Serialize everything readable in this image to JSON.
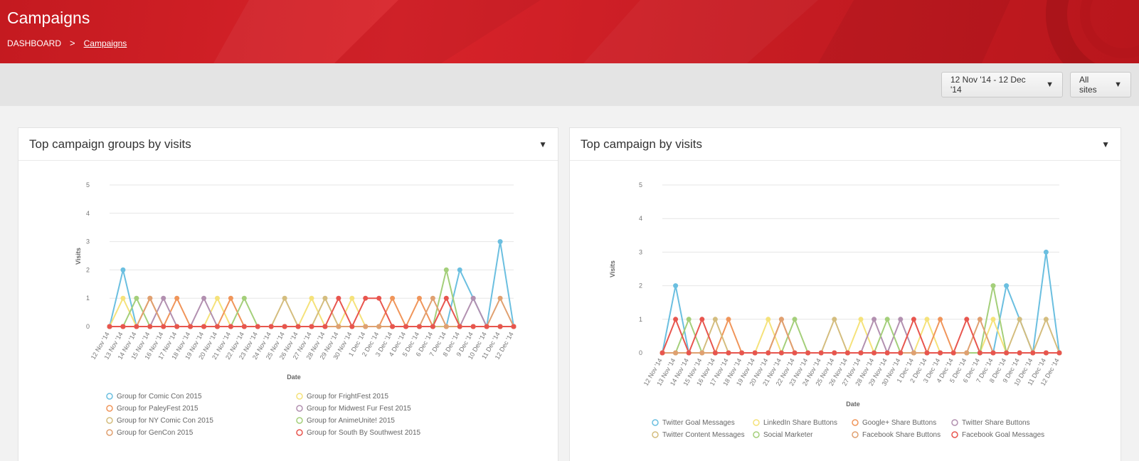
{
  "header": {
    "title": "Campaigns",
    "breadcrumb": {
      "root": "DASHBOARD",
      "separator": ">",
      "current": "Campaigns"
    }
  },
  "toolbar": {
    "date_range": "12 Nov '14 - 12 Dec '14",
    "sites": "All sites"
  },
  "colors": {
    "header_red": "#d8232a",
    "toolbar_bg": "#e4e4e4"
  },
  "panels": [
    {
      "title": "Top campaign groups by visits"
    },
    {
      "title": "Top campaign by visits"
    }
  ],
  "chart_data": [
    {
      "type": "line",
      "title": "Top campaign groups by visits",
      "xlabel": "Date",
      "ylabel": "Visits",
      "ylim": [
        0,
        5
      ],
      "yticks": [
        0,
        1,
        2,
        3,
        4,
        5
      ],
      "grid": true,
      "legend": "bottom",
      "x": [
        "12 Nov '14",
        "13 Nov '14",
        "14 Nov '14",
        "15 Nov '14",
        "16 Nov '14",
        "17 Nov '14",
        "18 Nov '14",
        "19 Nov '14",
        "20 Nov '14",
        "21 Nov '14",
        "22 Nov '14",
        "23 Nov '14",
        "24 Nov '14",
        "25 Nov '14",
        "26 Nov '14",
        "27 Nov '14",
        "28 Nov '14",
        "29 Nov '14",
        "30 Nov '14",
        "1 Dec '14",
        "2 Dec '14",
        "3 Dec '14",
        "4 Dec '14",
        "5 Dec '14",
        "6 Dec '14",
        "7 Dec '14",
        "8 Dec '14",
        "9 Dec '14",
        "10 Dec '14",
        "11 Dec '14",
        "12 Dec '14"
      ],
      "series": [
        {
          "name": "Group for Comic Con 2015",
          "color": "#6bbfe0",
          "values": [
            0,
            2,
            0,
            0,
            0,
            0,
            0,
            0,
            0,
            0,
            0,
            0,
            0,
            0,
            0,
            0,
            0,
            0,
            0,
            0,
            0,
            0,
            0,
            0,
            0,
            0,
            2,
            1,
            0,
            3,
            0
          ]
        },
        {
          "name": "Group for FrightFest 2015",
          "color": "#f5e27a",
          "values": [
            0,
            1,
            0,
            0,
            0,
            0,
            0,
            0,
            1,
            0,
            0,
            0,
            0,
            0,
            0,
            1,
            0,
            0,
            1,
            0,
            0,
            0,
            0,
            0,
            0,
            0,
            0,
            0,
            0,
            0,
            0
          ]
        },
        {
          "name": "Group for PaleyFest 2015",
          "color": "#f0955a",
          "values": [
            0,
            0,
            0,
            1,
            0,
            1,
            0,
            0,
            0,
            1,
            0,
            0,
            0,
            0,
            0,
            0,
            0,
            0,
            0,
            0,
            0,
            1,
            0,
            1,
            0,
            0,
            0,
            0,
            0,
            0,
            0
          ]
        },
        {
          "name": "Group for Midwest Fur Fest 2015",
          "color": "#b290b0",
          "values": [
            0,
            0,
            0,
            0,
            1,
            0,
            0,
            1,
            0,
            0,
            0,
            0,
            0,
            0,
            0,
            0,
            0,
            0,
            0,
            0,
            0,
            0,
            0,
            0,
            0,
            0,
            0,
            1,
            0,
            0,
            0
          ]
        },
        {
          "name": "Group for NY Comic Con 2015",
          "color": "#d4bd7e",
          "values": [
            0,
            0,
            0,
            0,
            0,
            0,
            0,
            0,
            0,
            0,
            0,
            0,
            0,
            1,
            0,
            0,
            1,
            0,
            0,
            0,
            0,
            0,
            0,
            0,
            0,
            0,
            0,
            0,
            0,
            0,
            0
          ]
        },
        {
          "name": "Group for AnimeUnite! 2015",
          "color": "#a4cf7a",
          "values": [
            0,
            0,
            1,
            0,
            0,
            0,
            0,
            0,
            0,
            0,
            1,
            0,
            0,
            0,
            0,
            0,
            0,
            0,
            0,
            0,
            0,
            0,
            0,
            0,
            0,
            2,
            0,
            0,
            0,
            0,
            0
          ]
        },
        {
          "name": "Group for GenCon 2015",
          "color": "#e0a070",
          "values": [
            0,
            0,
            0,
            1,
            0,
            0,
            0,
            0,
            0,
            0,
            0,
            0,
            0,
            0,
            0,
            0,
            0,
            0,
            0,
            0,
            0,
            0,
            0,
            0,
            1,
            0,
            0,
            0,
            0,
            1,
            0
          ]
        },
        {
          "name": "Group for South By Southwest 2015",
          "color": "#e8554e",
          "values": [
            0,
            0,
            0,
            0,
            0,
            0,
            0,
            0,
            0,
            0,
            0,
            0,
            0,
            0,
            0,
            0,
            0,
            1,
            0,
            1,
            1,
            0,
            0,
            0,
            0,
            1,
            0,
            0,
            0,
            0,
            0
          ]
        }
      ]
    },
    {
      "type": "line",
      "title": "Top campaign by visits",
      "xlabel": "Date",
      "ylabel": "Visits",
      "ylim": [
        0,
        5
      ],
      "yticks": [
        0,
        1,
        2,
        3,
        4,
        5
      ],
      "grid": true,
      "legend": "bottom",
      "x": [
        "12 Nov '14",
        "13 Nov '14",
        "14 Nov '14",
        "15 Nov '14",
        "16 Nov '14",
        "17 Nov '14",
        "18 Nov '14",
        "19 Nov '14",
        "20 Nov '14",
        "21 Nov '14",
        "22 Nov '14",
        "23 Nov '14",
        "24 Nov '14",
        "25 Nov '14",
        "26 Nov '14",
        "27 Nov '14",
        "28 Nov '14",
        "29 Nov '14",
        "30 Nov '14",
        "1 Dec '14",
        "2 Dec '14",
        "3 Dec '14",
        "4 Dec '14",
        "5 Dec '14",
        "6 Dec '14",
        "7 Dec '14",
        "8 Dec '14",
        "9 Dec '14",
        "10 Dec '14",
        "11 Dec '14",
        "12 Dec '14"
      ],
      "series": [
        {
          "name": "Twitter Goal Messages",
          "color": "#6bbfe0",
          "values": [
            0,
            2,
            0,
            0,
            0,
            0,
            0,
            0,
            0,
            0,
            0,
            0,
            0,
            0,
            0,
            0,
            0,
            0,
            0,
            0,
            0,
            0,
            0,
            0,
            0,
            0,
            2,
            1,
            0,
            3,
            0
          ]
        },
        {
          "name": "LinkedIn Share Buttons",
          "color": "#f5e27a",
          "values": [
            0,
            0,
            0,
            0,
            0,
            0,
            0,
            0,
            1,
            0,
            0,
            0,
            0,
            0,
            0,
            1,
            0,
            0,
            0,
            0,
            1,
            0,
            0,
            0,
            0,
            1,
            0,
            0,
            0,
            0,
            0
          ]
        },
        {
          "name": "Google+ Share Buttons",
          "color": "#f0955a",
          "values": [
            0,
            0,
            0,
            0,
            0,
            1,
            0,
            0,
            0,
            1,
            0,
            0,
            0,
            0,
            0,
            0,
            0,
            0,
            0,
            0,
            0,
            1,
            0,
            0,
            0,
            0,
            0,
            0,
            0,
            0,
            0
          ]
        },
        {
          "name": "Twitter Share Buttons",
          "color": "#b290b0",
          "values": [
            0,
            0,
            0,
            0,
            0,
            0,
            0,
            0,
            0,
            0,
            0,
            0,
            0,
            0,
            0,
            0,
            1,
            0,
            1,
            0,
            0,
            0,
            0,
            0,
            0,
            0,
            0,
            0,
            0,
            0,
            0
          ]
        },
        {
          "name": "Twitter Content Messages",
          "color": "#d4bd7e",
          "values": [
            0,
            0,
            0,
            0,
            1,
            0,
            0,
            0,
            0,
            0,
            0,
            0,
            0,
            1,
            0,
            0,
            0,
            0,
            0,
            0,
            0,
            0,
            0,
            0,
            0,
            0,
            0,
            1,
            0,
            1,
            0
          ]
        },
        {
          "name": "Social Marketer",
          "color": "#a4cf7a",
          "values": [
            0,
            0,
            1,
            0,
            0,
            0,
            0,
            0,
            0,
            0,
            1,
            0,
            0,
            0,
            0,
            0,
            0,
            1,
            0,
            0,
            0,
            0,
            0,
            0,
            0,
            2,
            0,
            0,
            0,
            0,
            0
          ]
        },
        {
          "name": "Facebook Share Buttons",
          "color": "#e0a070",
          "values": [
            0,
            0,
            0,
            0,
            0,
            0,
            0,
            0,
            0,
            1,
            0,
            0,
            0,
            0,
            0,
            0,
            0,
            0,
            0,
            0,
            0,
            0,
            0,
            0,
            1,
            0,
            0,
            0,
            0,
            0,
            0
          ]
        },
        {
          "name": "Facebook Goal Messages",
          "color": "#e8554e",
          "values": [
            0,
            1,
            0,
            1,
            0,
            0,
            0,
            0,
            0,
            0,
            0,
            0,
            0,
            0,
            0,
            0,
            0,
            0,
            0,
            1,
            0,
            0,
            0,
            1,
            0,
            0,
            0,
            0,
            0,
            0,
            0
          ]
        }
      ]
    }
  ]
}
